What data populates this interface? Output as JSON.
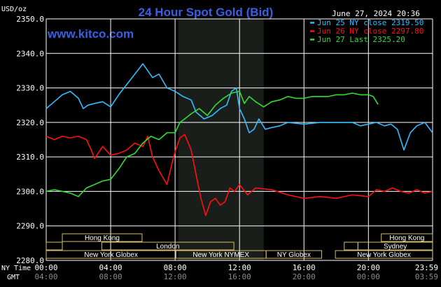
{
  "chart_data": {
    "type": "line",
    "title": "24 Hour Spot Gold (Bid)",
    "date_stamp": "June 27, 2024 20:36",
    "site_label": "www.kitco.com",
    "ylabel": "USD/oz",
    "ylim": [
      2280,
      2350
    ],
    "y_ticks": [
      "2350.0",
      "2340.0",
      "2330.0",
      "2320.0",
      "2310.0",
      "2300.0",
      "2290.0",
      "2280.0"
    ],
    "grid": true,
    "legend_position": "top-right",
    "x_row_labels": {
      "ny": "NY Time",
      "gmt": "GMT"
    },
    "x_ticks_ny": [
      "00:00",
      "04:00",
      "08:00",
      "12:00",
      "16:00",
      "20:00",
      "23:59"
    ],
    "x_ticks_gmt": [
      "04:00",
      "08:00",
      "12:00",
      "16:00",
      "20:00",
      "00:00",
      "03:59"
    ],
    "x_hours": [
      0,
      4,
      8,
      12,
      16,
      20,
      23.9833
    ],
    "highlight_range_hours": [
      8.2,
      13.5
    ],
    "colors": {
      "accent_title": "#3A5FE5",
      "grid": "#FFFFFF",
      "shade": "#1A1E1A",
      "session_bar": "#D4BE6A",
      "text": "#FFFFFF"
    },
    "series": [
      {
        "name": "Jun 25 NY close 2319.50",
        "color": "#33BBFF",
        "x": [
          0,
          0.5,
          1,
          1.5,
          2,
          2.3,
          2.6,
          3,
          3.5,
          4,
          4.5,
          5,
          5.5,
          6,
          6.3,
          6.6,
          7,
          7.5,
          8,
          8.5,
          9,
          9.3,
          9.8,
          10.3,
          10.8,
          11.2,
          11.5,
          11.8,
          12,
          12.3,
          12.6,
          12.9,
          13.2,
          13.6,
          14,
          14.5,
          15,
          16,
          17,
          18,
          19,
          19.5,
          20,
          20.5,
          21,
          21.4,
          21.8,
          22.2,
          22.6,
          23,
          23.5,
          23.98
        ],
        "y": [
          2324,
          2326,
          2328,
          2329,
          2327,
          2324,
          2325,
          2325.5,
          2326,
          2324.5,
          2328,
          2331,
          2334,
          2337,
          2335,
          2333,
          2334,
          2330,
          2329,
          2327.5,
          2326.5,
          2323,
          2321,
          2322,
          2324,
          2325,
          2329,
          2330,
          2324,
          2321,
          2317,
          2318,
          2321,
          2318,
          2318.5,
          2319,
          2320,
          2319.5,
          2320,
          2320,
          2320,
          2319,
          2319.5,
          2320,
          2319,
          2319.5,
          2318,
          2312,
          2317,
          2319,
          2320,
          2317
        ]
      },
      {
        "name": "Jun 26 NY close 2297.80",
        "color": "#FF1010",
        "x": [
          0,
          0.5,
          1,
          1.5,
          2,
          2.5,
          2.8,
          3,
          3.5,
          4,
          4.5,
          5,
          5.5,
          6,
          6.3,
          6.6,
          7,
          7.5,
          7.8,
          8,
          8.3,
          8.6,
          9,
          9.3,
          9.6,
          9.9,
          10.2,
          10.5,
          10.8,
          11.1,
          11.4,
          11.7,
          12,
          12.5,
          13,
          14,
          15,
          16,
          17,
          18,
          19,
          20,
          20.5,
          21,
          21.5,
          22,
          22.5,
          23,
          23.5,
          23.98
        ],
        "y": [
          2316,
          2315,
          2316,
          2315.5,
          2316,
          2315,
          2312,
          2309.5,
          2313,
          2310.5,
          2311,
          2312,
          2314,
          2313,
          2316,
          2310,
          2306,
          2302,
          2308,
          2311.5,
          2315.5,
          2316.5,
          2312,
          2305,
          2298,
          2293,
          2297,
          2298,
          2296,
          2297,
          2301,
          2300,
          2302,
          2299,
          2301,
          2300.5,
          2299,
          2298,
          2298.5,
          2298,
          2299,
          2298.5,
          2300.5,
          2300,
          2301,
          2300,
          2299.5,
          2300.5,
          2299.5,
          2300
        ]
      },
      {
        "name": "Jun 27 Last 2325.20",
        "color": "#33DD33",
        "x": [
          0,
          0.5,
          1,
          1.5,
          2,
          2.5,
          3,
          3.5,
          4,
          4.5,
          5,
          5.5,
          6,
          6.5,
          7,
          7.5,
          8,
          8.3,
          8.6,
          9,
          9.5,
          10,
          10.5,
          11,
          11.5,
          12,
          12.3,
          12.6,
          13,
          13.5,
          14,
          14.5,
          15,
          15.5,
          16,
          16.5,
          17,
          17.5,
          18,
          18.5,
          19,
          19.5,
          20,
          20.3,
          20.6
        ],
        "y": [
          2300,
          2300.5,
          2300,
          2299.5,
          2298.5,
          2301,
          2302,
          2303,
          2303.5,
          2306.5,
          2310,
          2311,
          2314,
          2316,
          2315,
          2317,
          2317,
          2320,
          2321,
          2322.5,
          2324,
          2322,
          2325,
          2327,
          2328.5,
          2329,
          2325.5,
          2327.5,
          2326,
          2324.5,
          2326,
          2326.5,
          2327.5,
          2327,
          2327,
          2327.5,
          2327.5,
          2327.5,
          2328,
          2328,
          2328.5,
          2328,
          2328,
          2327.5,
          2325.2
        ]
      }
    ],
    "sessions": [
      {
        "label": "Hong Kong",
        "start": 1.0,
        "end": 5.95
      },
      {
        "label": "London",
        "start": 3.45,
        "end": 11.65
      },
      {
        "label": "New York Globex",
        "start": 0.0,
        "end": 8.05
      },
      {
        "label": "New York NYMEX",
        "start": 8.05,
        "end": 13.65
      },
      {
        "label": "NY Globex",
        "start": 13.65,
        "end": 17.1
      },
      {
        "label": "Hong Kong",
        "start": 20.8,
        "end": 23.98
      },
      {
        "label": "Sydney",
        "start": 19.35,
        "end": 23.98
      },
      {
        "label": "New York Globex",
        "start": 17.95,
        "end": 23.98
      }
    ]
  }
}
